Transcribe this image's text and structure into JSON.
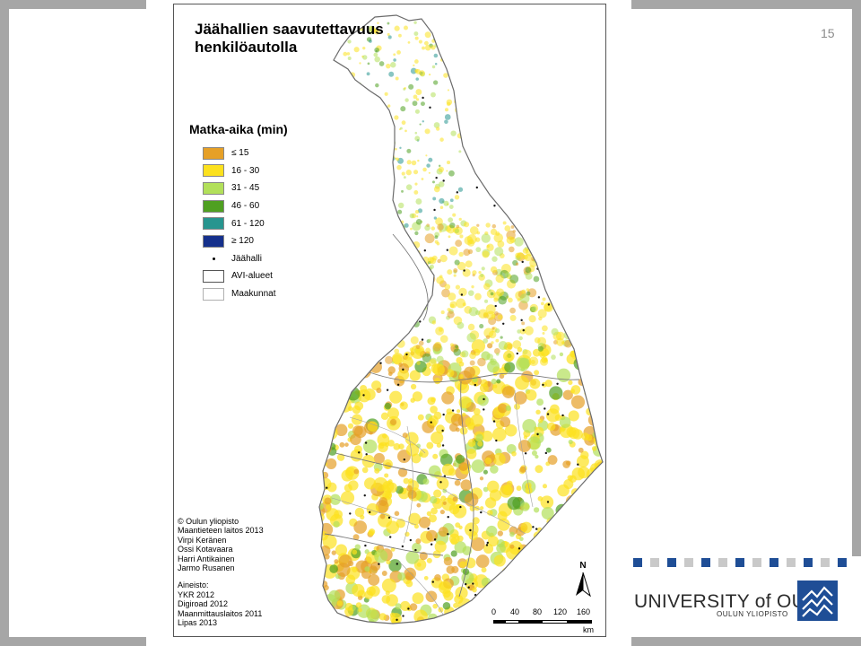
{
  "slide": {
    "page_number": "15"
  },
  "map": {
    "title_line1": "Jäähallien saavutettavuus",
    "title_line2": "henkilöautolla",
    "legend_title": "Matka-aika (min)",
    "legend": [
      {
        "label": "≤ 15",
        "color": "#e6a027"
      },
      {
        "label": "16 - 30",
        "color": "#fce11e"
      },
      {
        "label": "31 - 45",
        "color": "#b2e05a"
      },
      {
        "label": "46 - 60",
        "color": "#4fa021"
      },
      {
        "label": "61 - 120",
        "color": "#27958f"
      },
      {
        "label": "≥ 120",
        "color": "#15308c"
      },
      {
        "label": "Jäähalli",
        "symbol": "dot"
      },
      {
        "label": "AVI-alueet",
        "symbol": "outline-thick"
      },
      {
        "label": "Maakunnat",
        "symbol": "outline-thin"
      }
    ],
    "credits": [
      "© Oulun yliopisto",
      "Maantieteen laitos 2013",
      "Virpi Keränen",
      "Ossi Kotavaara",
      "Harri Antikainen",
      "Jarmo Rusanen"
    ],
    "sources_title": "Aineisto:",
    "sources": [
      "YKR 2012",
      "Digiroad 2012",
      "Maanmittauslaitos 2011",
      "Lipas 2013"
    ],
    "north_label": "N",
    "scale_ticks": [
      "0",
      "40",
      "80",
      "120",
      "160"
    ],
    "scale_unit": "km"
  },
  "branding": {
    "university_name": "UNIVERSITY of OULU",
    "university_name_fi": "OULUN YLIOPISTO",
    "logo_color": "#1f4e96"
  }
}
